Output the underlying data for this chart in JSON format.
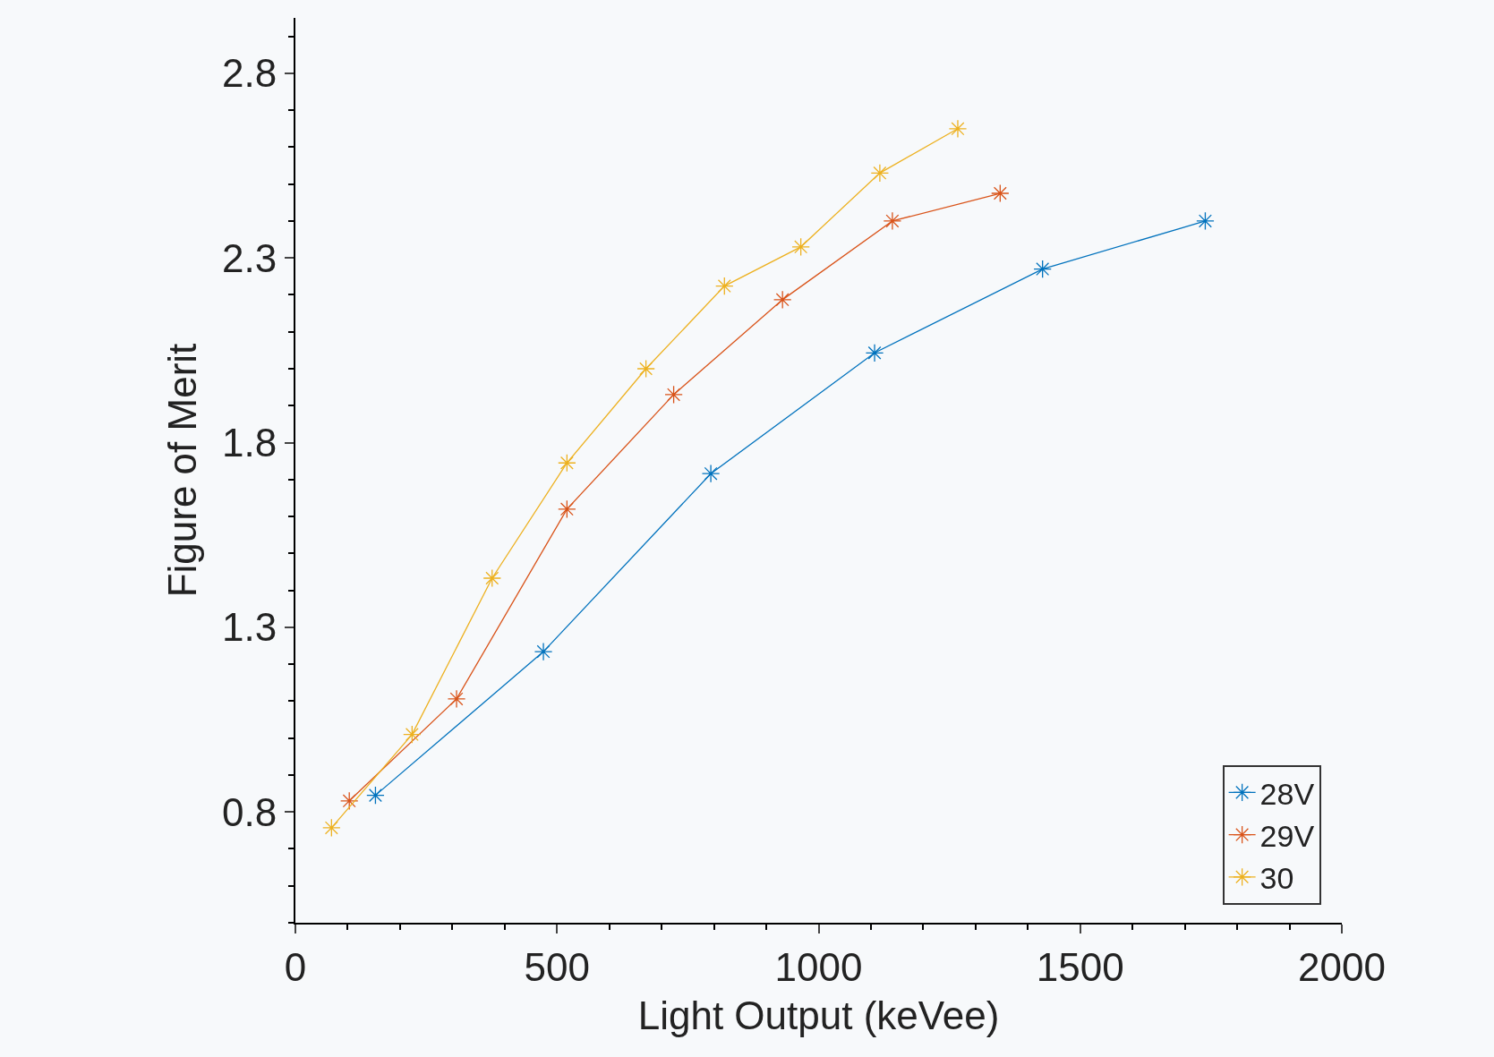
{
  "chart_data": {
    "type": "line",
    "xlabel": "Light Output (keVee)",
    "ylabel": "Figure of Merit",
    "xlim": [
      0,
      2000
    ],
    "xticks": [
      0,
      500,
      1000,
      1500,
      2000
    ],
    "ylim": [
      0.5,
      2.95
    ],
    "yticks": [
      0.8,
      1.3,
      1.8,
      2.3,
      2.8
    ],
    "marker": "cross",
    "line_style": "solid",
    "legend": "bottom right",
    "grid": false,
    "series": [
      {
        "name": "28V",
        "color": "#0072bd",
        "x": [
          153,
          474,
          794,
          1107,
          1428,
          1739
        ],
        "values": [
          0.845,
          1.234,
          1.716,
          2.043,
          2.27,
          2.4
        ]
      },
      {
        "name": "29V",
        "color": "#d95319",
        "x": [
          103,
          308,
          519,
          723,
          931,
          1141,
          1347
        ],
        "values": [
          0.83,
          1.106,
          1.62,
          1.93,
          2.187,
          2.4,
          2.475
        ]
      },
      {
        "name": "30",
        "color": "#edb120",
        "x": [
          69,
          223,
          376,
          519,
          670,
          820,
          966,
          1117,
          1266
        ],
        "values": [
          0.757,
          1.01,
          1.433,
          1.745,
          2.0,
          2.224,
          2.33,
          2.53,
          2.65
        ]
      }
    ]
  }
}
